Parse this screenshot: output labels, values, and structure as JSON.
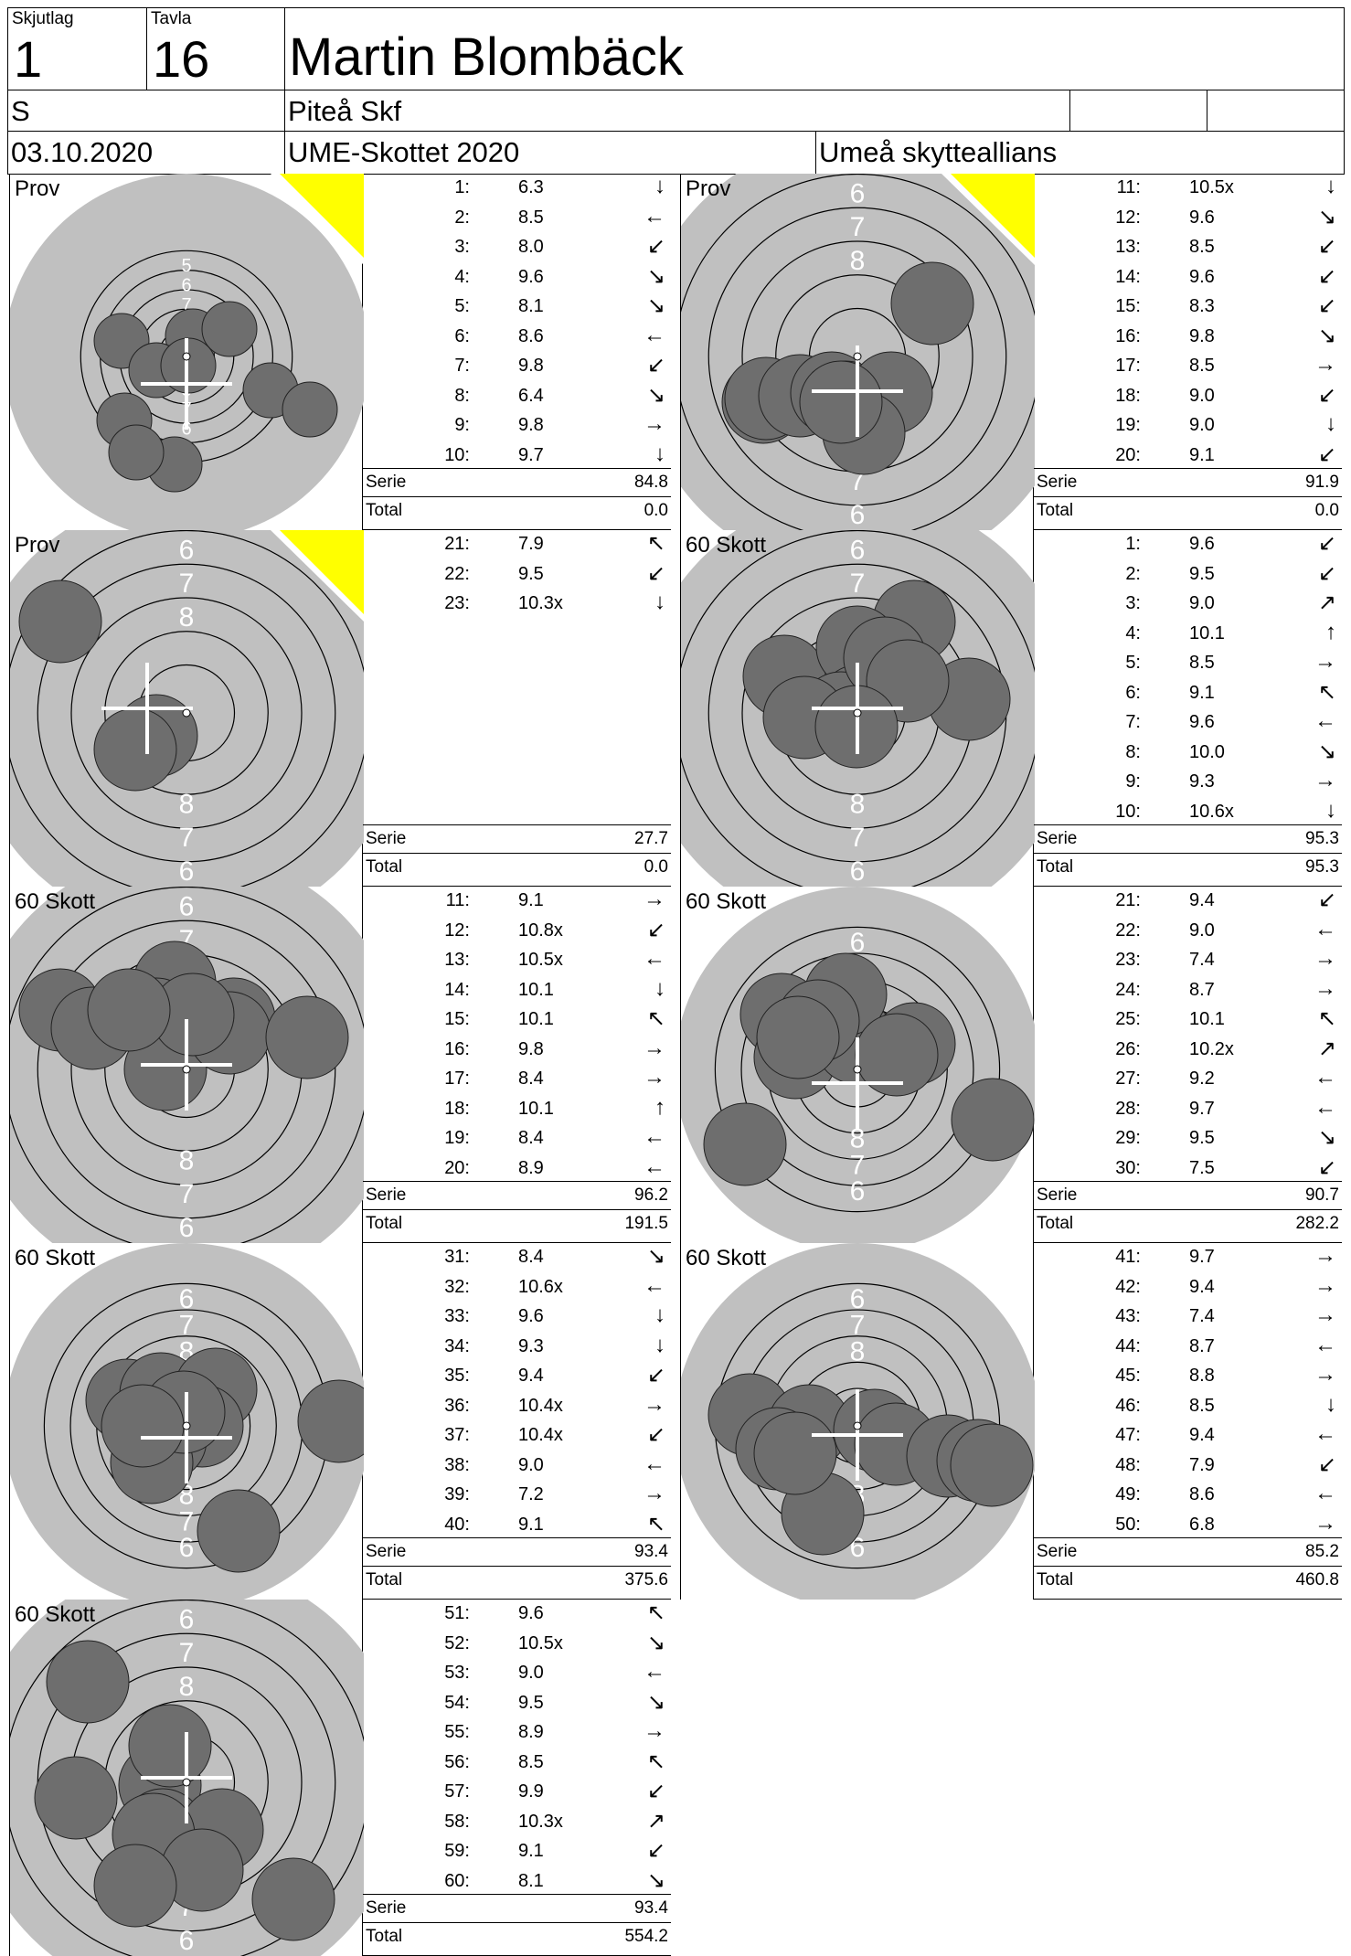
{
  "header": {
    "skjutlag_label": "Skjutlag",
    "skjutlag": "1",
    "tavla_label": "Tavla",
    "tavla": "16",
    "name": "Martin Blombäck",
    "klass": "S",
    "club": "Piteå Skf",
    "date": "03.10.2020",
    "event": "UME-Skottet 2020",
    "organizer": "Umeå skytteallians"
  },
  "labels": {
    "serie": "Serie",
    "total": "Total"
  },
  "colors": {
    "target_bg": "#c0c0c0",
    "shot": "#6e6e6e",
    "prov_marker": "#ffff00"
  },
  "panels": [
    {
      "title": "Prov",
      "prov": true,
      "shots": [
        {
          "n": "1:",
          "v": "6.3",
          "a": "↓"
        },
        {
          "n": "2:",
          "v": "8.5",
          "a": "←"
        },
        {
          "n": "3:",
          "v": "8.0",
          "a": "↙"
        },
        {
          "n": "4:",
          "v": "9.6",
          "a": "↘"
        },
        {
          "n": "5:",
          "v": "8.1",
          "a": "↘"
        },
        {
          "n": "6:",
          "v": "8.6",
          "a": "←"
        },
        {
          "n": "7:",
          "v": "9.8",
          "a": "↙"
        },
        {
          "n": "8:",
          "v": "6.4",
          "a": "↘"
        },
        {
          "n": "9:",
          "v": "9.8",
          "a": "→"
        },
        {
          "n": "10:",
          "v": "9.7",
          "a": "↓"
        }
      ],
      "serie": "84.8",
      "total": "0.0"
    },
    {
      "title": "Prov",
      "prov": true,
      "shots": [
        {
          "n": "11:",
          "v": "10.5x",
          "a": "↓"
        },
        {
          "n": "12:",
          "v": "9.6",
          "a": "↘"
        },
        {
          "n": "13:",
          "v": "8.5",
          "a": "↙"
        },
        {
          "n": "14:",
          "v": "9.6",
          "a": "↙"
        },
        {
          "n": "15:",
          "v": "8.3",
          "a": "↙"
        },
        {
          "n": "16:",
          "v": "9.8",
          "a": "↘"
        },
        {
          "n": "17:",
          "v": "8.5",
          "a": "→"
        },
        {
          "n": "18:",
          "v": "9.0",
          "a": "↙"
        },
        {
          "n": "19:",
          "v": "9.0",
          "a": "↓"
        },
        {
          "n": "20:",
          "v": "9.1",
          "a": "↙"
        }
      ],
      "serie": "91.9",
      "total": "0.0"
    },
    {
      "title": "Prov",
      "prov": true,
      "shots": [
        {
          "n": "21:",
          "v": "7.9",
          "a": "↖"
        },
        {
          "n": "22:",
          "v": "9.5",
          "a": "↙"
        },
        {
          "n": "23:",
          "v": "10.3x",
          "a": "↓"
        }
      ],
      "serie": "27.7",
      "total": "0.0"
    },
    {
      "title": "60 Skott",
      "prov": false,
      "shots": [
        {
          "n": "1:",
          "v": "9.6",
          "a": "↙"
        },
        {
          "n": "2:",
          "v": "9.5",
          "a": "↙"
        },
        {
          "n": "3:",
          "v": "9.0",
          "a": "↗"
        },
        {
          "n": "4:",
          "v": "10.1",
          "a": "↑"
        },
        {
          "n": "5:",
          "v": "8.5",
          "a": "→"
        },
        {
          "n": "6:",
          "v": "9.1",
          "a": "↖"
        },
        {
          "n": "7:",
          "v": "9.6",
          "a": "←"
        },
        {
          "n": "8:",
          "v": "10.0",
          "a": "↘"
        },
        {
          "n": "9:",
          "v": "9.3",
          "a": "→"
        },
        {
          "n": "10:",
          "v": "10.6x",
          "a": "↓"
        }
      ],
      "serie": "95.3",
      "total": "95.3"
    },
    {
      "title": "60 Skott",
      "prov": false,
      "shots": [
        {
          "n": "11:",
          "v": "9.1",
          "a": "→"
        },
        {
          "n": "12:",
          "v": "10.8x",
          "a": "↙"
        },
        {
          "n": "13:",
          "v": "10.5x",
          "a": "←"
        },
        {
          "n": "14:",
          "v": "10.1",
          "a": "↓"
        },
        {
          "n": "15:",
          "v": "10.1",
          "a": "↖"
        },
        {
          "n": "16:",
          "v": "9.8",
          "a": "→"
        },
        {
          "n": "17:",
          "v": "8.4",
          "a": "→"
        },
        {
          "n": "18:",
          "v": "10.1",
          "a": "↑"
        },
        {
          "n": "19:",
          "v": "8.4",
          "a": "←"
        },
        {
          "n": "20:",
          "v": "8.9",
          "a": "←"
        }
      ],
      "serie": "96.2",
      "total": "191.5"
    },
    {
      "title": "60 Skott",
      "prov": false,
      "shots": [
        {
          "n": "21:",
          "v": "9.4",
          "a": "↙"
        },
        {
          "n": "22:",
          "v": "9.0",
          "a": "←"
        },
        {
          "n": "23:",
          "v": "7.4",
          "a": "→"
        },
        {
          "n": "24:",
          "v": "8.7",
          "a": "→"
        },
        {
          "n": "25:",
          "v": "10.1",
          "a": "↖"
        },
        {
          "n": "26:",
          "v": "10.2x",
          "a": "↗"
        },
        {
          "n": "27:",
          "v": "9.2",
          "a": "←"
        },
        {
          "n": "28:",
          "v": "9.7",
          "a": "←"
        },
        {
          "n": "29:",
          "v": "9.5",
          "a": "↘"
        },
        {
          "n": "30:",
          "v": "7.5",
          "a": "↙"
        }
      ],
      "serie": "90.7",
      "total": "282.2"
    },
    {
      "title": "60 Skott",
      "prov": false,
      "shots": [
        {
          "n": "31:",
          "v": "8.4",
          "a": "↘"
        },
        {
          "n": "32:",
          "v": "10.6x",
          "a": "←"
        },
        {
          "n": "33:",
          "v": "9.6",
          "a": "↓"
        },
        {
          "n": "34:",
          "v": "9.3",
          "a": "↓"
        },
        {
          "n": "35:",
          "v": "9.4",
          "a": "↙"
        },
        {
          "n": "36:",
          "v": "10.4x",
          "a": "→"
        },
        {
          "n": "37:",
          "v": "10.4x",
          "a": "↙"
        },
        {
          "n": "38:",
          "v": "9.0",
          "a": "←"
        },
        {
          "n": "39:",
          "v": "7.2",
          "a": "→"
        },
        {
          "n": "40:",
          "v": "9.1",
          "a": "↖"
        }
      ],
      "serie": "93.4",
      "total": "375.6"
    },
    {
      "title": "60 Skott",
      "prov": false,
      "shots": [
        {
          "n": "41:",
          "v": "9.7",
          "a": "→"
        },
        {
          "n": "42:",
          "v": "9.4",
          "a": "→"
        },
        {
          "n": "43:",
          "v": "7.4",
          "a": "→"
        },
        {
          "n": "44:",
          "v": "8.7",
          "a": "←"
        },
        {
          "n": "45:",
          "v": "8.8",
          "a": "→"
        },
        {
          "n": "46:",
          "v": "8.5",
          "a": "↓"
        },
        {
          "n": "47:",
          "v": "9.4",
          "a": "←"
        },
        {
          "n": "48:",
          "v": "7.9",
          "a": "↙"
        },
        {
          "n": "49:",
          "v": "8.6",
          "a": "←"
        },
        {
          "n": "50:",
          "v": "6.8",
          "a": "→"
        }
      ],
      "serie": "85.2",
      "total": "460.8"
    },
    {
      "title": "60 Skott",
      "prov": false,
      "shots": [
        {
          "n": "51:",
          "v": "9.6",
          "a": "↖"
        },
        {
          "n": "52:",
          "v": "10.5x",
          "a": "↘"
        },
        {
          "n": "53:",
          "v": "9.0",
          "a": "←"
        },
        {
          "n": "54:",
          "v": "9.5",
          "a": "↘"
        },
        {
          "n": "55:",
          "v": "8.9",
          "a": "→"
        },
        {
          "n": "56:",
          "v": "8.5",
          "a": "↖"
        },
        {
          "n": "57:",
          "v": "9.9",
          "a": "↙"
        },
        {
          "n": "58:",
          "v": "10.3x",
          "a": "↗"
        },
        {
          "n": "59:",
          "v": "9.1",
          "a": "↙"
        },
        {
          "n": "60:",
          "v": "8.1",
          "a": "↘"
        }
      ],
      "serie": "93.4",
      "total": "554.2"
    }
  ]
}
